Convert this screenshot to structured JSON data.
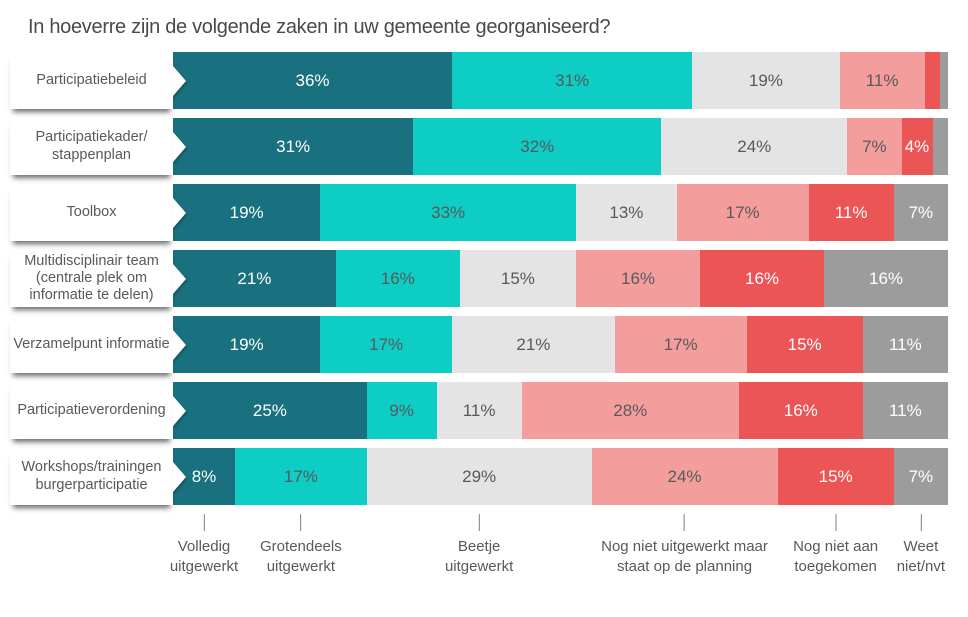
{
  "title": "In hoeverre zijn de volgende zaken in uw gemeente georganiseerd?",
  "colors": {
    "volledig": "#19707e",
    "grotendeels": "#0dcdc5",
    "beetje": "#e4e4e4",
    "planning": "#f49d9d",
    "niet_aan_toegekomen": "#ec5556",
    "weet_niet": "#9c9c9c",
    "text_dark": "#58595b",
    "text_light": "#ffffff",
    "title_text": "#4a4a4a"
  },
  "chart_data": {
    "type": "bar",
    "orientation": "horizontal",
    "stacked": true,
    "unit": "%",
    "xlim": [
      0,
      100
    ],
    "grid": false,
    "legend_position": "bottom",
    "title": "In hoeverre zijn de volgende zaken in uw gemeente georganiseerd?",
    "categories": [
      "Participatiebeleid",
      "Participatiekader/\nstappenplan",
      "Toolbox",
      "Multidisciplinair team\n(centrale plek om\ninformatie te delen)",
      "Verzamelpunt informatie",
      "Participatieverordening",
      "Workshops/trainingen\nburgerparticipatie"
    ],
    "series": [
      {
        "name": "Volledig uitgewerkt",
        "color": "#19707e",
        "label_color": "#ffffff",
        "values": [
          36,
          31,
          19,
          21,
          19,
          25,
          8
        ]
      },
      {
        "name": "Grotendeels uitgewerkt",
        "color": "#0dcdc5",
        "label_color": "#58595b",
        "values": [
          31,
          32,
          33,
          16,
          17,
          9,
          17
        ]
      },
      {
        "name": "Beetje uitgewerkt",
        "color": "#e4e4e4",
        "label_color": "#58595b",
        "values": [
          19,
          24,
          13,
          15,
          21,
          11,
          29
        ]
      },
      {
        "name": "Nog niet uitgewerkt maar staat op de planning",
        "color": "#f49d9d",
        "label_color": "#58595b",
        "values": [
          11,
          7,
          17,
          16,
          17,
          28,
          24
        ]
      },
      {
        "name": "Nog niet aan toegekomen",
        "color": "#ec5556",
        "label_color": "#ffffff",
        "values": [
          2,
          4,
          11,
          16,
          15,
          16,
          15
        ]
      },
      {
        "name": "Weet niet/nvt",
        "color": "#9c9c9c",
        "label_color": "#ffffff",
        "values": [
          1,
          2,
          7,
          16,
          11,
          11,
          7
        ]
      }
    ],
    "data_label_format": "{value}%",
    "data_label_min_value_shown": 4
  },
  "legend": {
    "items": [
      {
        "label": "Volledig\nuitgewerkt",
        "pos_pct": 4.0
      },
      {
        "label": "Grotendeels\nuitgewerkt",
        "pos_pct": 16.5
      },
      {
        "label": "Beetje\nuitgewerkt",
        "pos_pct": 39.5
      },
      {
        "label": "Nog niet uitgewerkt maar\nstaat op de planning",
        "pos_pct": 66.0
      },
      {
        "label": "Nog niet aan\ntoegekomen",
        "pos_pct": 85.5
      },
      {
        "label": "Weet\nniet/nvt",
        "pos_pct": 96.5
      }
    ]
  }
}
